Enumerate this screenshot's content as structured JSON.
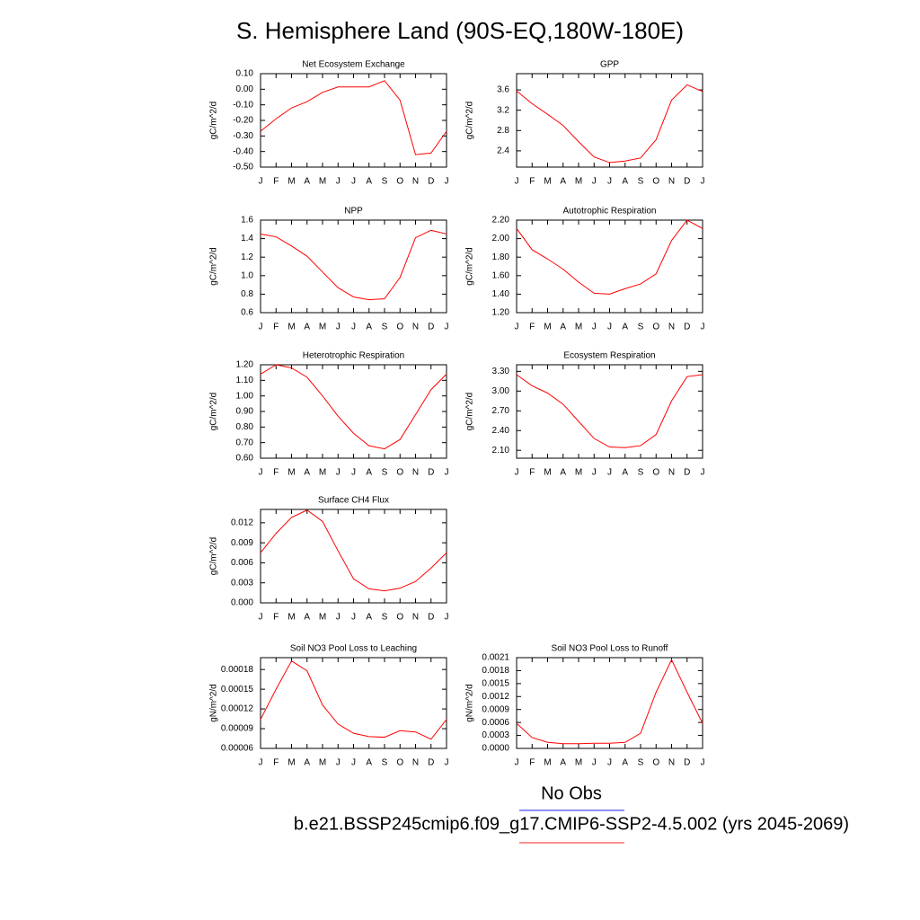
{
  "title": "S. Hemisphere Land (90S-EQ,180W-180E)",
  "legend": [
    {
      "name": "No Obs",
      "color": "#6b6bff"
    },
    {
      "name": "b.e21.BSSP245cmip6.f09_g17.CMIP6-SSP2-4.5.002 (yrs 2045-2069)",
      "color": "#ff6b6b"
    }
  ],
  "chart_data": [
    {
      "type": "line",
      "title": "Net Ecosystem Exchange",
      "y_label": "gC/m^2/d",
      "categories": [
        "J",
        "F",
        "M",
        "A",
        "M",
        "J",
        "J",
        "A",
        "S",
        "O",
        "N",
        "D",
        "J"
      ],
      "series": [
        {
          "color": "#ff0000",
          "values": [
            -0.27,
            -0.19,
            -0.12,
            -0.08,
            -0.02,
            0.015,
            0.015,
            0.015,
            0.055,
            -0.07,
            -0.42,
            -0.41,
            -0.27
          ]
        }
      ],
      "ylim": [
        -0.5,
        0.1
      ],
      "yticks": [
        {
          "value": -0.5,
          "label": "-0.50"
        },
        {
          "value": -0.4,
          "label": "-0.40"
        },
        {
          "value": -0.3,
          "label": "-0.30"
        },
        {
          "value": -0.2,
          "label": "-0.20"
        },
        {
          "value": -0.1,
          "label": "-0.10"
        },
        {
          "value": 0,
          "label": "0.00"
        },
        {
          "value": 0.1,
          "label": "0.10"
        }
      ]
    },
    {
      "type": "line",
      "title": "GPP",
      "y_label": "gC/m^2/d",
      "categories": [
        "J",
        "F",
        "M",
        "A",
        "M",
        "J",
        "J",
        "A",
        "S",
        "O",
        "N",
        "D",
        "J"
      ],
      "series": [
        {
          "color": "#ff0000",
          "values": [
            3.58,
            3.33,
            3.12,
            2.9,
            2.58,
            2.28,
            2.17,
            2.2,
            2.26,
            2.62,
            3.4,
            3.7,
            3.57
          ]
        }
      ],
      "ylim": [
        2.08,
        3.92
      ],
      "yticks": [
        2.4,
        2.8,
        3.2,
        3.6
      ]
    },
    {
      "type": "line",
      "title": "NPP",
      "y_label": "gC/m^2/d",
      "categories": [
        "J",
        "F",
        "M",
        "A",
        "M",
        "J",
        "J",
        "A",
        "S",
        "O",
        "N",
        "D",
        "J"
      ],
      "series": [
        {
          "color": "#ff0000",
          "values": [
            1.45,
            1.42,
            1.32,
            1.21,
            1.04,
            0.87,
            0.77,
            0.74,
            0.75,
            0.98,
            1.41,
            1.49,
            1.45
          ]
        }
      ],
      "ylim": [
        0.6,
        1.6
      ],
      "yticks": [
        0.6,
        0.8,
        {
          "value": 1,
          "label": "1.0"
        },
        1.2,
        1.4,
        1.6
      ]
    },
    {
      "type": "line",
      "title": "Autotrophic Respiration",
      "y_label": "gC/m^2/d",
      "categories": [
        "J",
        "F",
        "M",
        "A",
        "M",
        "J",
        "J",
        "A",
        "S",
        "O",
        "N",
        "D",
        "J"
      ],
      "series": [
        {
          "color": "#ff0000",
          "values": [
            2.11,
            1.88,
            1.78,
            1.67,
            1.53,
            1.41,
            1.4,
            1.46,
            1.51,
            1.62,
            1.98,
            2.2,
            2.11
          ]
        }
      ],
      "ylim": [
        1.2,
        2.2
      ],
      "yticks": [
        {
          "value": 1.2,
          "label": "1.20"
        },
        {
          "value": 1.4,
          "label": "1.40"
        },
        {
          "value": 1.6,
          "label": "1.60"
        },
        {
          "value": 1.8,
          "label": "1.80"
        },
        {
          "value": 2,
          "label": "2.00"
        },
        {
          "value": 2.2,
          "label": "2.20"
        }
      ]
    },
    {
      "type": "line",
      "title": "Heterotrophic Respiration",
      "y_label": "gC/m^2/d",
      "categories": [
        "J",
        "F",
        "M",
        "A",
        "M",
        "J",
        "J",
        "A",
        "S",
        "O",
        "N",
        "D",
        "J"
      ],
      "series": [
        {
          "color": "#ff0000",
          "values": [
            1.14,
            1.2,
            1.18,
            1.12,
            1.0,
            0.87,
            0.76,
            0.68,
            0.66,
            0.72,
            0.88,
            1.04,
            1.14
          ]
        }
      ],
      "ylim": [
        0.6,
        1.2
      ],
      "yticks": [
        {
          "value": 0.6,
          "label": "0.60"
        },
        {
          "value": 0.7,
          "label": "0.70"
        },
        {
          "value": 0.8,
          "label": "0.80"
        },
        {
          "value": 0.9,
          "label": "0.90"
        },
        {
          "value": 1,
          "label": "1.00"
        },
        {
          "value": 1.1,
          "label": "1.10"
        },
        {
          "value": 1.2,
          "label": "1.20"
        }
      ]
    },
    {
      "type": "line",
      "title": "Ecosystem Respiration",
      "y_label": "gC/m^2/d",
      "categories": [
        "J",
        "F",
        "M",
        "A",
        "M",
        "J",
        "J",
        "A",
        "S",
        "O",
        "N",
        "D",
        "J"
      ],
      "series": [
        {
          "color": "#ff0000",
          "values": [
            3.25,
            3.08,
            2.97,
            2.8,
            2.54,
            2.28,
            2.15,
            2.14,
            2.17,
            2.34,
            2.85,
            3.22,
            3.25
          ]
        }
      ],
      "ylim": [
        1.98,
        3.4
      ],
      "yticks": [
        {
          "value": 2.1,
          "label": "2.10"
        },
        {
          "value": 2.4,
          "label": "2.40"
        },
        {
          "value": 2.7,
          "label": "2.70"
        },
        {
          "value": 3,
          "label": "3.00"
        },
        {
          "value": 3.3,
          "label": "3.30"
        }
      ]
    },
    {
      "type": "line",
      "title": "Surface CH4 Flux",
      "y_label": "gC/m^2/d",
      "categories": [
        "J",
        "F",
        "M",
        "A",
        "M",
        "J",
        "J",
        "A",
        "S",
        "O",
        "N",
        "D",
        "J"
      ],
      "series": [
        {
          "color": "#ff0000",
          "values": [
            0.0075,
            0.0104,
            0.0128,
            0.0139,
            0.0122,
            0.0078,
            0.0036,
            0.0021,
            0.0018,
            0.0022,
            0.0032,
            0.0052,
            0.0075
          ]
        }
      ],
      "ylim": [
        0,
        0.014
      ],
      "yticks": [
        {
          "value": 0,
          "label": "0.000"
        },
        0.003,
        0.006,
        0.009,
        0.012
      ]
    },
    {
      "type": "line",
      "title": "Soil NO3 Pool Loss to Leaching",
      "y_label": "gN/m^2/d",
      "categories": [
        "J",
        "F",
        "M",
        "A",
        "M",
        "J",
        "J",
        "A",
        "S",
        "O",
        "N",
        "D",
        "J"
      ],
      "series": [
        {
          "color": "#ff0000",
          "values": [
            0.000104,
            0.00015,
            0.000193,
            0.000178,
            0.000126,
            9.7e-05,
            8.3e-05,
            7.8e-05,
            7.7e-05,
            8.7e-05,
            8.5e-05,
            7.4e-05,
            0.000104
          ]
        }
      ],
      "ylim": [
        6e-05,
        0.000198
      ],
      "yticks": [
        6e-05,
        9e-05,
        0.00012,
        0.00015,
        0.00018
      ]
    },
    {
      "type": "line",
      "title": "Soil NO3 Pool Loss to Runoff",
      "y_label": "gN/m^2/d",
      "categories": [
        "J",
        "F",
        "M",
        "A",
        "M",
        "J",
        "J",
        "A",
        "S",
        "O",
        "N",
        "D",
        "J"
      ],
      "series": [
        {
          "color": "#ff0000",
          "values": [
            0.00058,
            0.00025,
            0.00014,
            0.00011,
            0.00011,
            0.00012,
            0.00012,
            0.00014,
            0.00035,
            0.0013,
            0.00205,
            0.0013,
            0.00058
          ]
        }
      ],
      "ylim": [
        0,
        0.0021
      ],
      "yticks": [
        {
          "value": 0,
          "label": "0.0000"
        },
        {
          "value": 0.0003,
          "label": "0.0003"
        },
        {
          "value": 0.0006,
          "label": "0.0006"
        },
        {
          "value": 0.0009,
          "label": "0.0009"
        },
        {
          "value": 0.0012,
          "label": "0.0012"
        },
        {
          "value": 0.0015,
          "label": "0.0015"
        },
        {
          "value": 0.0018,
          "label": "0.0018"
        },
        {
          "value": 0.0021,
          "label": "0.0021"
        }
      ]
    }
  ]
}
